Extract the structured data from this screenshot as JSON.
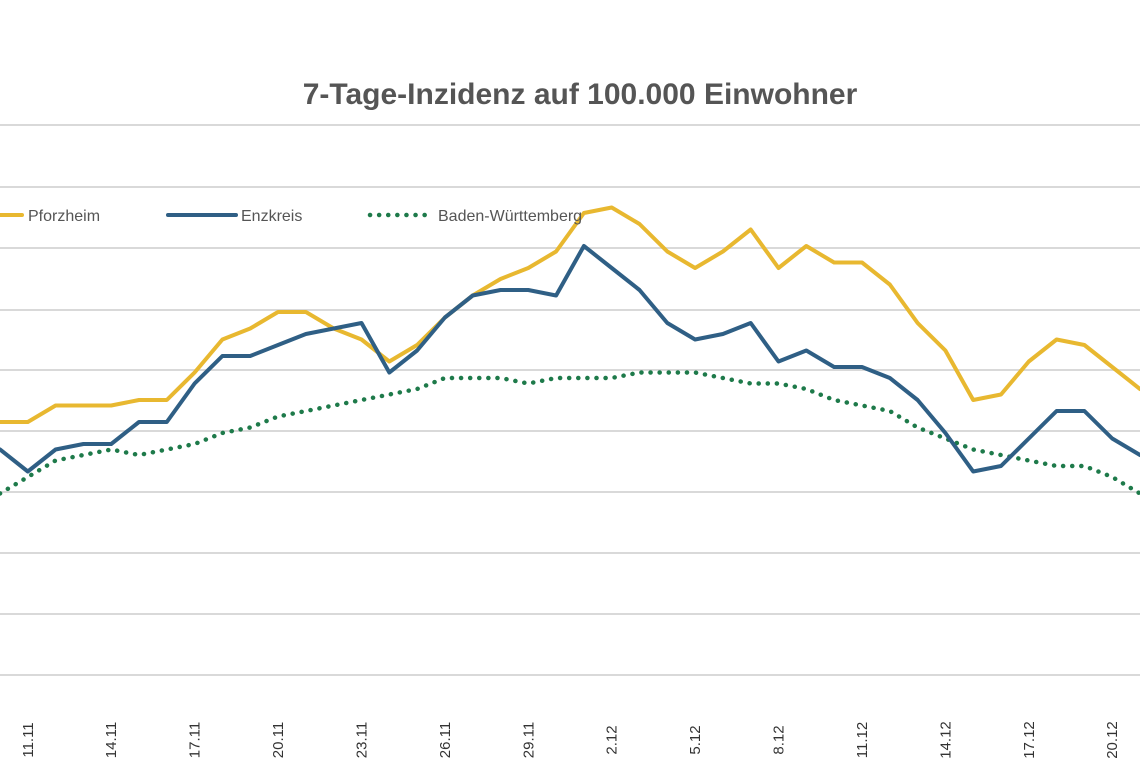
{
  "chart_data": {
    "type": "line",
    "title": "7-Tage-Inzidenz auf 100.000 Einwohner",
    "xlabel": "",
    "ylabel": "",
    "grid": true,
    "legend": "top-left",
    "x_tick_labels": [
      "11.11",
      "14.11",
      "17.11",
      "20.11",
      "23.11",
      "26.11",
      "29.11",
      "2.12",
      "5.12",
      "8.12",
      "11.12",
      "14.12",
      "17.12",
      "20.12"
    ],
    "x": [
      "10.11",
      "11.11",
      "12.11",
      "13.11",
      "14.11",
      "15.11",
      "16.11",
      "17.11",
      "18.11",
      "19.11",
      "20.11",
      "21.11",
      "22.11",
      "23.11",
      "24.11",
      "25.11",
      "26.11",
      "27.11",
      "28.11",
      "29.11",
      "30.11",
      "1.12",
      "2.12",
      "3.12",
      "4.12",
      "5.12",
      "6.12",
      "7.12",
      "8.12",
      "9.12",
      "10.12",
      "11.12",
      "12.12",
      "13.12",
      "14.12",
      "15.12",
      "16.12",
      "17.12",
      "18.12",
      "19.12",
      "20.12",
      "21.12"
    ],
    "series": [
      {
        "name": "Pforzheim",
        "color": "#e8b830",
        "style": "solid",
        "values": [
          0.46,
          0.46,
          0.49,
          0.49,
          0.49,
          0.5,
          0.5,
          0.55,
          0.61,
          0.63,
          0.66,
          0.66,
          0.63,
          0.61,
          0.57,
          0.6,
          0.65,
          0.69,
          0.72,
          0.74,
          0.77,
          0.84,
          0.85,
          0.82,
          0.77,
          0.74,
          0.77,
          0.81,
          0.74,
          0.78,
          0.75,
          0.75,
          0.71,
          0.64,
          0.59,
          0.5,
          0.51,
          0.57,
          0.61,
          0.6,
          0.56,
          0.52
        ]
      },
      {
        "name": "Enzkreis",
        "color": "#2f5f85",
        "style": "solid",
        "values": [
          0.41,
          0.37,
          0.41,
          0.42,
          0.42,
          0.46,
          0.46,
          0.53,
          0.58,
          0.58,
          0.6,
          0.62,
          0.63,
          0.64,
          0.55,
          0.59,
          0.65,
          0.69,
          0.7,
          0.7,
          0.69,
          0.78,
          0.74,
          0.7,
          0.64,
          0.61,
          0.62,
          0.64,
          0.57,
          0.59,
          0.56,
          0.56,
          0.54,
          0.5,
          0.44,
          0.37,
          0.38,
          0.43,
          0.48,
          0.48,
          0.43,
          0.4
        ]
      },
      {
        "name": "Baden-Württemberg",
        "color": "#1e7a4a",
        "style": "dotted",
        "values": [
          0.33,
          0.36,
          0.39,
          0.4,
          0.41,
          0.4,
          0.41,
          0.42,
          0.44,
          0.45,
          0.47,
          0.48,
          0.49,
          0.5,
          0.51,
          0.52,
          0.54,
          0.54,
          0.54,
          0.53,
          0.54,
          0.54,
          0.54,
          0.55,
          0.55,
          0.55,
          0.54,
          0.53,
          0.53,
          0.52,
          0.5,
          0.49,
          0.48,
          0.45,
          0.43,
          0.41,
          0.4,
          0.39,
          0.38,
          0.38,
          0.36,
          0.33
        ]
      }
    ]
  }
}
